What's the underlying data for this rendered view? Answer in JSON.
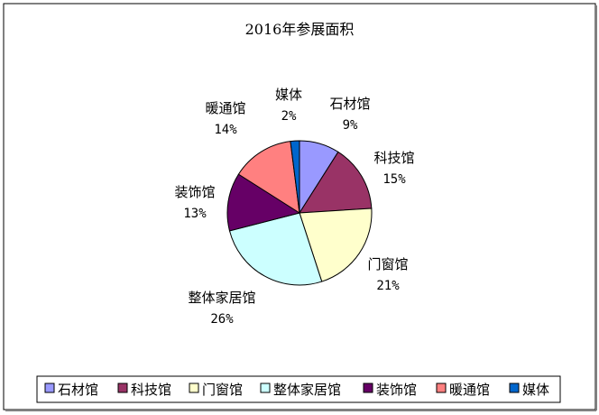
{
  "chart_data": {
    "type": "pie",
    "title": "2016年参展面积",
    "categories": [
      "石材馆",
      "科技馆",
      "门窗馆",
      "整体家居馆",
      "装饰馆",
      "暖通馆",
      "媒体"
    ],
    "values": [
      9,
      15,
      21,
      26,
      13,
      14,
      2
    ],
    "value_labels": [
      "9%",
      "15%",
      "21%",
      "26%",
      "13%",
      "14%",
      "2%"
    ],
    "colors": [
      "#9999FF",
      "#993366",
      "#FFFFCC",
      "#CCFFFF",
      "#660066",
      "#FF8080",
      "#0066CC"
    ],
    "legend_position": "bottom",
    "start_angle_deg": 0,
    "direction": "clockwise"
  }
}
